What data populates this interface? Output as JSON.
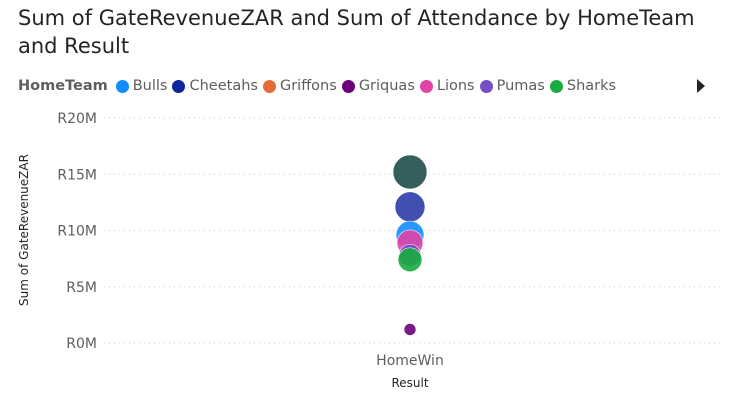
{
  "title": "Sum of GateRevenueZAR and Sum of Attendance by HomeTeam and Result",
  "legend": {
    "title": "HomeTeam",
    "items": [
      {
        "label": "Bulls",
        "color": "#118DFF"
      },
      {
        "label": "Cheetahs",
        "color": "#12239E"
      },
      {
        "label": "Griffons",
        "color": "#E66C37"
      },
      {
        "label": "Griquas",
        "color": "#6B007B"
      },
      {
        "label": "Lions",
        "color": "#E044A7"
      },
      {
        "label": "Pumas",
        "color": "#744EC2"
      },
      {
        "label": "Sharks",
        "color": "#1AAB40"
      }
    ]
  },
  "chart_data": {
    "type": "scatter",
    "subtype": "bubble",
    "title": "Sum of GateRevenueZAR and Sum of Attendance by HomeTeam and Result",
    "xlabel": "Result",
    "ylabel": "Sum of GateRevenueZAR",
    "categories": [
      "HomeWin"
    ],
    "y_ticks": [
      "R0M",
      "R5M",
      "R10M",
      "R15M",
      "R20M"
    ],
    "y_tick_values": [
      0,
      5,
      10,
      15,
      20
    ],
    "ylim": [
      0,
      20
    ],
    "y_unit": "millions ZAR",
    "grid": true,
    "legend_position": "top-left",
    "points": [
      {
        "x": "HomeWin",
        "y": 15.2,
        "size": 17,
        "color": "#1F4E4A"
      },
      {
        "x": "HomeWin",
        "y": 12.1,
        "size": 15,
        "color": "#2E3BA8"
      },
      {
        "x": "HomeWin",
        "y": 9.6,
        "size": 14,
        "color": "#118DFF"
      },
      {
        "x": "HomeWin",
        "y": 8.9,
        "size": 13,
        "color": "#E044A7"
      },
      {
        "x": "HomeWin",
        "y": 7.8,
        "size": 11,
        "color": "#744EC2"
      },
      {
        "x": "HomeWin",
        "y": 7.4,
        "size": 12,
        "color": "#1AAB40"
      },
      {
        "x": "HomeWin",
        "y": 1.2,
        "size": 6,
        "color": "#6B007B"
      }
    ]
  }
}
